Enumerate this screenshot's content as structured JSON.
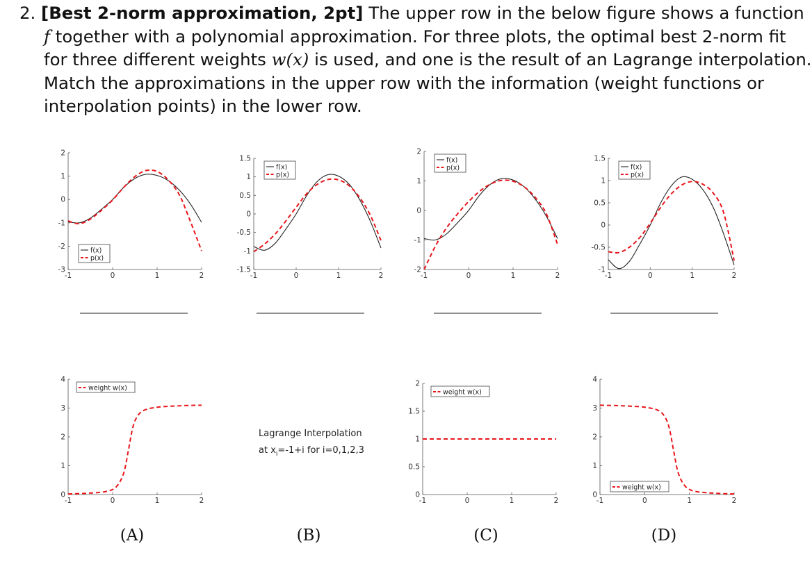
{
  "problem": {
    "number": "2.",
    "title": "[Best 2-norm approximation, 2pt]",
    "line1_rest": "The upper row in the below figure shows a function",
    "fsym": "f",
    "line2_rest": "together with a polynomial approximation. For three plots, the optimal best 2-norm fit",
    "line3_a": "for three different weights",
    "wsym": "w(x)",
    "line3_b": "is used, and one is the result of an Lagrange interpolation.",
    "line4": "Match the approximations in the upper row with the information (weight functions or",
    "line5": "interpolation points) in the lower row."
  },
  "answer_blanks": 4,
  "panel_labels": [
    "(A)",
    "(B)",
    "(C)",
    "(D)"
  ],
  "lagrange_note": {
    "line1": "Lagrange Interpolation",
    "line2_pre": "at x",
    "line2_sub": "i",
    "line2_post": "=-1+i for i=0,1,2,3"
  },
  "colors": {
    "f_line": "#222222",
    "p_line": "#e8161b",
    "weight_line": "#e8161b",
    "axis": "#555555"
  },
  "chart_data": [
    {
      "type": "line",
      "panel": "top-1",
      "xlim": [
        -1,
        2
      ],
      "ylim": [
        -3,
        2
      ],
      "xticks": [
        "-1",
        "0",
        "1",
        "2"
      ],
      "yticks": [
        "-3",
        "-2",
        "-1",
        "0",
        "1",
        "2"
      ],
      "legend": [
        "f(x)",
        "p(x)"
      ],
      "legend_position": "bottom-left",
      "series": [
        {
          "name": "f(x)",
          "style": "solid",
          "x": [
            -1,
            -0.75,
            -0.5,
            -0.25,
            0,
            0.25,
            0.5,
            0.75,
            1,
            1.25,
            1.5,
            1.75,
            2
          ],
          "y": [
            -0.96,
            -1.0,
            -0.8,
            -0.42,
            0.0,
            0.52,
            0.9,
            1.08,
            1.03,
            0.81,
            0.4,
            -0.2,
            -0.98
          ]
        },
        {
          "name": "p(x)",
          "style": "dashed",
          "x": [
            -1,
            -0.75,
            -0.5,
            -0.25,
            0,
            0.25,
            0.5,
            0.75,
            1,
            1.25,
            1.5,
            1.75,
            2
          ],
          "y": [
            -0.92,
            -1.04,
            -0.84,
            -0.46,
            -0.02,
            0.52,
            0.98,
            1.24,
            1.2,
            0.84,
            0.2,
            -0.95,
            -2.2
          ]
        }
      ]
    },
    {
      "type": "line",
      "panel": "top-2",
      "xlim": [
        -1,
        2
      ],
      "ylim": [
        -1.5,
        1.5
      ],
      "xticks": [
        "-1",
        "0",
        "1",
        "2"
      ],
      "yticks": [
        "-1.5",
        "-1",
        "-0.5",
        "0",
        "0.5",
        "1",
        "1.5"
      ],
      "legend": [
        "f(x)",
        "p(x)"
      ],
      "legend_position": "top-left",
      "series": [
        {
          "name": "f(x)",
          "style": "solid",
          "x": [
            -1,
            -0.75,
            -0.5,
            -0.25,
            0,
            0.25,
            0.5,
            0.75,
            1,
            1.25,
            1.5,
            1.75,
            2
          ],
          "y": [
            -0.88,
            -0.98,
            -0.8,
            -0.42,
            0.0,
            0.5,
            0.88,
            1.06,
            1.02,
            0.8,
            0.38,
            -0.2,
            -0.92
          ]
        },
        {
          "name": "p(x)",
          "style": "dashed",
          "x": [
            -1,
            -0.75,
            -0.5,
            -0.25,
            0,
            0.25,
            0.5,
            0.75,
            1,
            1.25,
            1.5,
            1.75,
            2
          ],
          "y": [
            -1.02,
            -0.82,
            -0.55,
            -0.2,
            0.18,
            0.55,
            0.8,
            0.93,
            0.92,
            0.76,
            0.44,
            -0.04,
            -0.72
          ]
        }
      ]
    },
    {
      "type": "line",
      "panel": "top-3",
      "xlim": [
        -1,
        2
      ],
      "ylim": [
        -2,
        2
      ],
      "xticks": [
        "-1",
        "0",
        "1",
        "2"
      ],
      "yticks": [
        "-2",
        "-1",
        "0",
        "1",
        "2"
      ],
      "legend": [
        "f(x)",
        "p(x)"
      ],
      "legend_position": "top-left",
      "series": [
        {
          "name": "f(x)",
          "style": "solid",
          "x": [
            -1,
            -0.75,
            -0.5,
            -0.25,
            0,
            0.25,
            0.5,
            0.75,
            1,
            1.25,
            1.5,
            1.75,
            2
          ],
          "y": [
            -0.95,
            -1.0,
            -0.8,
            -0.42,
            0.0,
            0.52,
            0.9,
            1.08,
            1.03,
            0.8,
            0.38,
            -0.2,
            -0.95
          ]
        },
        {
          "name": "p(x)",
          "style": "dashed",
          "x": [
            -1,
            -0.75,
            -0.5,
            -0.25,
            0,
            0.25,
            0.5,
            0.75,
            1,
            1.25,
            1.5,
            1.75,
            2
          ],
          "y": [
            -2.0,
            -1.22,
            -0.6,
            -0.12,
            0.3,
            0.65,
            0.9,
            1.02,
            0.99,
            0.8,
            0.44,
            -0.12,
            -1.15
          ]
        }
      ]
    },
    {
      "type": "line",
      "panel": "top-4",
      "xlim": [
        -1,
        2
      ],
      "ylim": [
        -1,
        1.5
      ],
      "xticks": [
        "-1",
        "0",
        "1",
        "2"
      ],
      "yticks": [
        "-1",
        "-0.5",
        "0",
        "0.5",
        "1",
        "1.5"
      ],
      "legend": [
        "f(x)",
        "p(x)"
      ],
      "legend_position": "top-left",
      "series": [
        {
          "name": "f(x)",
          "style": "solid",
          "x": [
            -1,
            -0.75,
            -0.5,
            -0.25,
            0,
            0.25,
            0.5,
            0.75,
            1,
            1.25,
            1.5,
            1.75,
            2
          ],
          "y": [
            -0.78,
            -0.98,
            -0.82,
            -0.43,
            0.0,
            0.5,
            0.88,
            1.08,
            1.03,
            0.8,
            0.4,
            -0.2,
            -0.9
          ]
        },
        {
          "name": "p(x)",
          "style": "dashed",
          "x": [
            -1,
            -0.75,
            -0.5,
            -0.25,
            0,
            0.25,
            0.5,
            0.75,
            1,
            1.25,
            1.5,
            1.75,
            2
          ],
          "y": [
            -0.6,
            -0.62,
            -0.5,
            -0.28,
            0.04,
            0.4,
            0.7,
            0.9,
            0.98,
            0.92,
            0.72,
            0.28,
            -0.8
          ]
        }
      ]
    },
    {
      "type": "line",
      "panel": "bottom-A",
      "xlim": [
        -1,
        2
      ],
      "ylim": [
        0,
        4
      ],
      "xticks": [
        "-1",
        "0",
        "1",
        "2"
      ],
      "yticks": [
        "0",
        "1",
        "2",
        "3",
        "4"
      ],
      "legend": [
        "weight w(x)"
      ],
      "legend_position": "top-left",
      "series": [
        {
          "name": "weight w(x)",
          "style": "dashed",
          "x": [
            -1,
            -0.5,
            -0.1,
            0.1,
            0.25,
            0.35,
            0.45,
            0.55,
            0.7,
            1,
            1.5,
            2
          ],
          "y": [
            0.02,
            0.05,
            0.12,
            0.3,
            0.75,
            1.5,
            2.3,
            2.7,
            2.92,
            3.03,
            3.08,
            3.1
          ]
        }
      ]
    },
    {
      "type": "line",
      "panel": "bottom-C",
      "xlim": [
        -1,
        2
      ],
      "ylim": [
        0,
        2
      ],
      "xticks": [
        "-1",
        "0",
        "1",
        "2"
      ],
      "yticks": [
        "0",
        "0.5",
        "1",
        "1.5",
        "2"
      ],
      "legend": [
        "weight w(x)"
      ],
      "legend_position": "top-left",
      "series": [
        {
          "name": "weight w(x)",
          "style": "dashed",
          "x": [
            -1,
            2
          ],
          "y": [
            1,
            1
          ]
        }
      ]
    },
    {
      "type": "line",
      "panel": "bottom-D",
      "xlim": [
        -1,
        2
      ],
      "ylim": [
        0,
        4
      ],
      "xticks": [
        "-1",
        "0",
        "1",
        "2"
      ],
      "yticks": [
        "0",
        "1",
        "2",
        "3",
        "4"
      ],
      "legend": [
        "weight w(x)"
      ],
      "legend_position": "bottom-left",
      "series": [
        {
          "name": "weight w(x)",
          "style": "dashed",
          "x": [
            -1,
            -0.5,
            0,
            0.3,
            0.45,
            0.55,
            0.65,
            0.75,
            0.9,
            1.1,
            1.5,
            2
          ],
          "y": [
            3.1,
            3.08,
            3.03,
            2.92,
            2.7,
            2.3,
            1.5,
            0.75,
            0.3,
            0.12,
            0.05,
            0.02
          ]
        }
      ]
    }
  ]
}
